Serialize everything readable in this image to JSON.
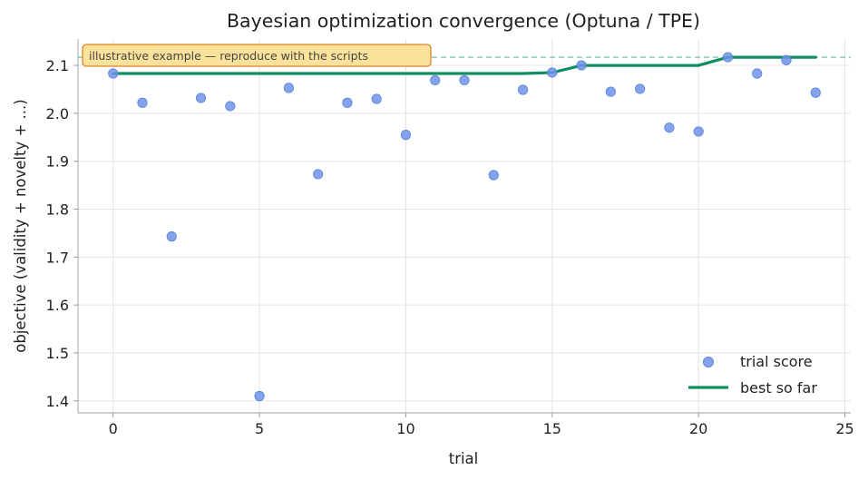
{
  "chart_data": {
    "type": "scatter",
    "title": "Bayesian optimization convergence (Optuna / TPE)",
    "xlabel": "trial",
    "ylabel": "objective  (validity + novelty + ...)",
    "xlim": [
      -1.2,
      25.2
    ],
    "ylim": [
      1.375,
      2.155
    ],
    "xticks": [
      "0",
      "5",
      "10",
      "15",
      "20",
      "25"
    ],
    "xtick_values": [
      0,
      5,
      10,
      15,
      20,
      25
    ],
    "yticks": [
      "1.4",
      "1.5",
      "1.6",
      "1.7",
      "1.8",
      "1.9",
      "2.0",
      "2.1"
    ],
    "ytick_values": [
      1.4,
      1.5,
      1.6,
      1.7,
      1.8,
      1.9,
      2.0,
      2.1
    ],
    "grid": true,
    "legend_position": "bottom-right",
    "annotation": "illustrative example — reproduce with the scripts",
    "reference_line": {
      "y": 2.117,
      "style": "dashed",
      "color": "#7fc4ac"
    },
    "series": [
      {
        "name": "trial score",
        "kind": "scatter",
        "color": "#6f93e8",
        "x": [
          0,
          1,
          2,
          3,
          4,
          5,
          6,
          7,
          8,
          9,
          10,
          11,
          12,
          13,
          14,
          15,
          16,
          17,
          18,
          19,
          20,
          21,
          22,
          23,
          24
        ],
        "y": [
          2.083,
          2.022,
          1.743,
          2.032,
          2.015,
          1.41,
          2.053,
          1.873,
          2.022,
          2.03,
          1.955,
          2.069,
          2.069,
          1.871,
          2.049,
          2.085,
          2.1,
          2.045,
          2.051,
          1.97,
          1.962,
          2.117,
          2.083,
          2.111,
          2.043
        ]
      },
      {
        "name": "best so far",
        "kind": "line",
        "color": "#0f8f5e",
        "x": [
          0,
          1,
          2,
          3,
          4,
          5,
          6,
          7,
          8,
          9,
          10,
          11,
          12,
          13,
          14,
          15,
          16,
          17,
          18,
          19,
          20,
          21,
          22,
          23,
          24
        ],
        "y": [
          2.083,
          2.083,
          2.083,
          2.083,
          2.083,
          2.083,
          2.083,
          2.083,
          2.083,
          2.083,
          2.083,
          2.083,
          2.083,
          2.083,
          2.083,
          2.085,
          2.1,
          2.1,
          2.1,
          2.1,
          2.1,
          2.117,
          2.117,
          2.117,
          2.117
        ]
      }
    ]
  }
}
